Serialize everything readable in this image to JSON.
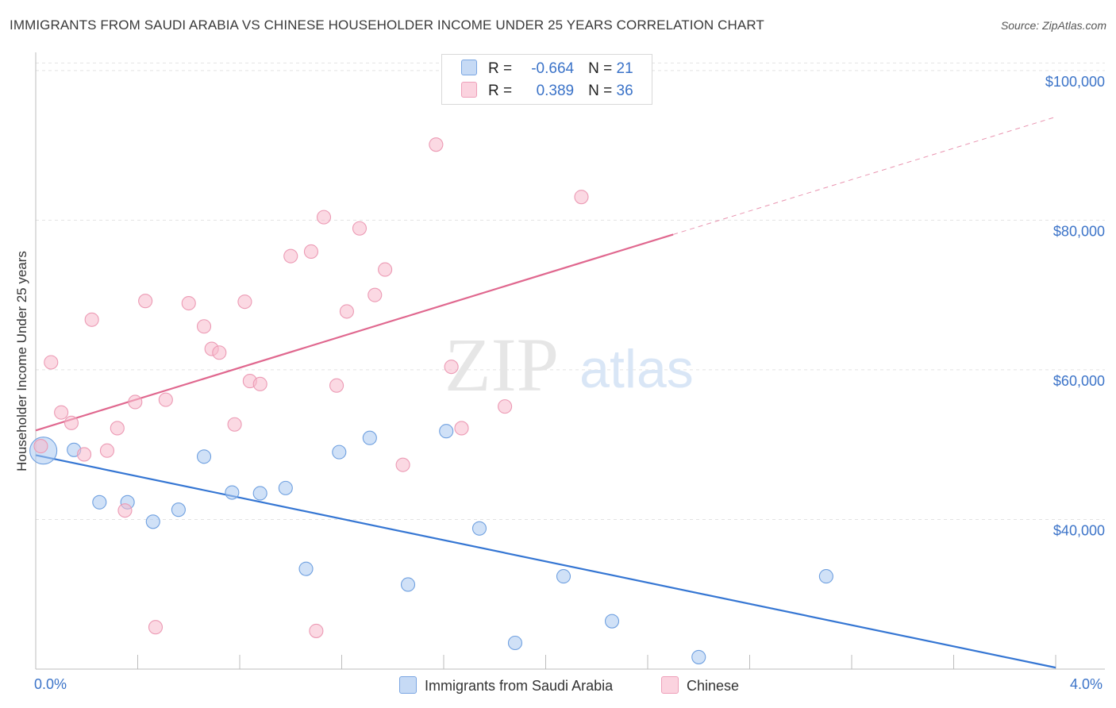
{
  "title": "IMMIGRANTS FROM SAUDI ARABIA VS CHINESE HOUSEHOLDER INCOME UNDER 25 YEARS CORRELATION CHART",
  "source": "Source: ZipAtlas.com",
  "watermark": {
    "zip": "ZIP",
    "atlas": "atlas"
  },
  "legend_top": {
    "rows": [
      {
        "r_label": "R =",
        "r_value": "-0.664",
        "n_label": "N =",
        "n_value": "21",
        "color": "#a9c8f0"
      },
      {
        "r_label": "R =",
        "r_value": "0.389",
        "n_label": "N =",
        "n_value": "36",
        "color": "#f7b9cc"
      }
    ]
  },
  "legend_bottom": {
    "items": [
      {
        "label": "Immigrants from Saudi Arabia",
        "color": "#a9c8f0"
      },
      {
        "label": "Chinese",
        "color": "#f7b9cc"
      }
    ]
  },
  "chart_data": {
    "type": "scatter",
    "title": "IMMIGRANTS FROM SAUDI ARABIA VS CHINESE HOUSEHOLDER INCOME UNDER 25 YEARS CORRELATION CHART",
    "xlabel": "",
    "ylabel": "Householder Income Under 25 years",
    "xlim": [
      0.0,
      4.0
    ],
    "ylim": [
      20000,
      102000
    ],
    "x_tick_labels": [
      "0.0%",
      "4.0%"
    ],
    "y_ticks": [
      40000,
      60000,
      80000,
      100000
    ],
    "y_tick_labels": [
      "$40,000",
      "$60,000",
      "$80,000",
      "$100,000"
    ],
    "grid": true,
    "series": [
      {
        "name": "Immigrants from Saudi Arabia",
        "color": "#6fa0e0",
        "fill": "#a9c8f0",
        "trend_color": "#3576d3",
        "trend": {
          "x0": 0.0,
          "y0": 48600,
          "x1": 4.0,
          "y1": 20200,
          "solid_until": 4.0
        },
        "points": [
          {
            "x": 0.03,
            "y": 49200,
            "big": true
          },
          {
            "x": 0.15,
            "y": 49300
          },
          {
            "x": 0.25,
            "y": 42300
          },
          {
            "x": 0.36,
            "y": 42300
          },
          {
            "x": 0.46,
            "y": 39700
          },
          {
            "x": 0.56,
            "y": 41300
          },
          {
            "x": 0.66,
            "y": 48400
          },
          {
            "x": 0.77,
            "y": 43600
          },
          {
            "x": 0.88,
            "y": 43500
          },
          {
            "x": 0.98,
            "y": 44200
          },
          {
            "x": 1.06,
            "y": 33400
          },
          {
            "x": 1.19,
            "y": 49000
          },
          {
            "x": 1.31,
            "y": 50900
          },
          {
            "x": 1.46,
            "y": 31300
          },
          {
            "x": 1.61,
            "y": 51800
          },
          {
            "x": 1.74,
            "y": 38800
          },
          {
            "x": 1.88,
            "y": 23500
          },
          {
            "x": 2.07,
            "y": 32400
          },
          {
            "x": 2.26,
            "y": 26400
          },
          {
            "x": 2.6,
            "y": 21600
          },
          {
            "x": 3.1,
            "y": 32400
          }
        ]
      },
      {
        "name": "Chinese",
        "color": "#ec9ab4",
        "fill": "#f7b9cc",
        "trend_color": "#e0688f",
        "trend": {
          "x0": 0.0,
          "y0": 51900,
          "x1": 4.0,
          "y1": 93800,
          "solid_until": 2.5
        },
        "points": [
          {
            "x": 0.02,
            "y": 49800
          },
          {
            "x": 0.06,
            "y": 61000
          },
          {
            "x": 0.1,
            "y": 54300
          },
          {
            "x": 0.14,
            "y": 52900
          },
          {
            "x": 0.19,
            "y": 48700
          },
          {
            "x": 0.22,
            "y": 66700
          },
          {
            "x": 0.28,
            "y": 49200
          },
          {
            "x": 0.32,
            "y": 52200
          },
          {
            "x": 0.35,
            "y": 41200
          },
          {
            "x": 0.39,
            "y": 55700
          },
          {
            "x": 0.43,
            "y": 69200
          },
          {
            "x": 0.47,
            "y": 25600
          },
          {
            "x": 0.51,
            "y": 56000
          },
          {
            "x": 0.6,
            "y": 68900
          },
          {
            "x": 0.66,
            "y": 65800
          },
          {
            "x": 0.69,
            "y": 62800
          },
          {
            "x": 0.72,
            "y": 62300
          },
          {
            "x": 0.78,
            "y": 52700
          },
          {
            "x": 0.82,
            "y": 69100
          },
          {
            "x": 0.84,
            "y": 58500
          },
          {
            "x": 0.88,
            "y": 58100
          },
          {
            "x": 1.0,
            "y": 75200
          },
          {
            "x": 1.08,
            "y": 75800
          },
          {
            "x": 1.1,
            "y": 25100
          },
          {
            "x": 1.13,
            "y": 80400
          },
          {
            "x": 1.18,
            "y": 57900
          },
          {
            "x": 1.22,
            "y": 67800
          },
          {
            "x": 1.27,
            "y": 78900
          },
          {
            "x": 1.33,
            "y": 70000
          },
          {
            "x": 1.37,
            "y": 73400
          },
          {
            "x": 1.44,
            "y": 47300
          },
          {
            "x": 1.57,
            "y": 90100
          },
          {
            "x": 1.63,
            "y": 60400
          },
          {
            "x": 1.67,
            "y": 52200
          },
          {
            "x": 1.84,
            "y": 55100
          },
          {
            "x": 2.14,
            "y": 83100
          }
        ]
      }
    ]
  }
}
